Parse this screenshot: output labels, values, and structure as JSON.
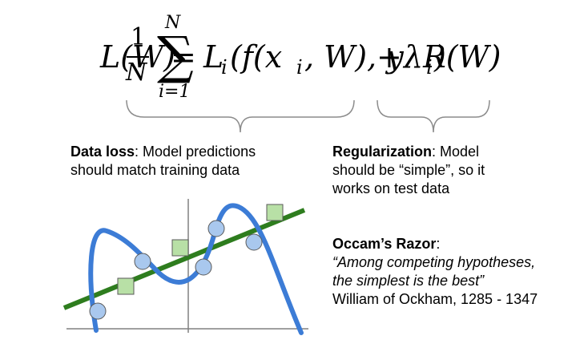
{
  "equation": {
    "lhs": "L(W)",
    "eq": "=",
    "num": "1",
    "den": "N",
    "sum_top": "N",
    "sum_sym": "∑",
    "sum_bottom": "i=1",
    "term_L": "L",
    "term_i": "i",
    "term_args": "(f(x",
    "term_xi": "i",
    "term_mid": ", W), y",
    "term_yi": "i",
    "term_close": ")",
    "plus": "+",
    "reg": "λR(W)"
  },
  "data_loss": {
    "title": "Data loss",
    "line1_rest": ": Model predictions",
    "line2": "should match training data"
  },
  "regularization": {
    "title": "Regularization",
    "line1_rest": ": Model",
    "line2": "should be “simple”, so it",
    "line3": "works on test data"
  },
  "occam": {
    "title": "Occam’s Razor",
    "title_rest": ":",
    "quote1": "“Among competing hypotheses,",
    "quote2": "the simplest is the best”",
    "attribution": "William of Ockham, 1285 - 1347"
  },
  "colors": {
    "curve": "#3c7cd6",
    "line": "#2e7d1e",
    "circle_fill": "#a9c8ee",
    "square_fill": "#b8e0a6",
    "axis": "#808080",
    "brace": "#8c8c8c"
  },
  "icons": {
    "circle_marker": "blue-circle-marker",
    "square_marker": "green-square-marker"
  }
}
